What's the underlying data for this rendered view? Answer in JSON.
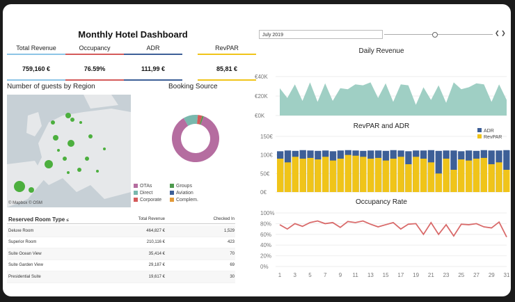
{
  "title": "Monthly Hotel Dashboard",
  "kpis": [
    {
      "label": "Total Revenue",
      "value": "759,160 €",
      "color": "#8cc4e6"
    },
    {
      "label": "Occupancy",
      "value": "76.59%",
      "color": "#d45a5a"
    },
    {
      "label": "ADR",
      "value": "111,99 €",
      "color": "#3d5f97"
    },
    {
      "label": "RevPAR",
      "value": "85,81 €",
      "color": "#f0c419"
    }
  ],
  "region": {
    "title": "Number of guests by Region",
    "credit": "© Mapbox © OSM"
  },
  "booking": {
    "title": "Booking Source",
    "legend": [
      {
        "label": "OTAs",
        "color": "#b56da0"
      },
      {
        "label": "Groups",
        "color": "#4e9a4e"
      },
      {
        "label": "Direct",
        "color": "#79b8ad"
      },
      {
        "label": "Aviation",
        "color": "#3d5f97"
      },
      {
        "label": "Corporate",
        "color": "#d45a5a"
      },
      {
        "label": "Complem.",
        "color": "#e39a38"
      }
    ],
    "slices": [
      86,
      10,
      3,
      1
    ]
  },
  "table": {
    "header": {
      "type": "Reserved Room Type",
      "revenue": "Total Revenue",
      "checked": "Checked In"
    },
    "rows": [
      {
        "type": "Deluxe Room",
        "revenue": "464,827 €",
        "checked": "1,529"
      },
      {
        "type": "Superior Room",
        "revenue": "210,116 €",
        "checked": "423"
      },
      {
        "type": "Suite Ocean View",
        "revenue": "35,414 €",
        "checked": "70"
      },
      {
        "type": "Suite Garden View",
        "revenue": "29,187 €",
        "checked": "69"
      },
      {
        "type": "Presidential Suite",
        "revenue": "19,617 €",
        "checked": "30"
      }
    ]
  },
  "filter": {
    "month": "July 2019"
  },
  "chart_data": [
    {
      "type": "area",
      "title": "Daily Revenue",
      "y_ticks": [
        "€40K",
        "€20K",
        "€0K"
      ],
      "ylim": [
        0,
        55000
      ],
      "x": [
        1,
        2,
        3,
        4,
        5,
        6,
        7,
        8,
        9,
        10,
        11,
        12,
        13,
        14,
        15,
        16,
        17,
        18,
        19,
        20,
        21,
        22,
        23,
        24,
        25,
        26,
        27,
        28,
        29,
        30,
        31
      ],
      "values": [
        28000,
        18000,
        32000,
        15000,
        34000,
        14000,
        33000,
        15000,
        28000,
        27000,
        32000,
        31000,
        34000,
        18000,
        33000,
        14000,
        32000,
        31000,
        11000,
        29000,
        16000,
        31000,
        13000,
        34000,
        27000,
        29000,
        33000,
        32000,
        14000,
        32000,
        16000
      ]
    },
    {
      "type": "bar",
      "title": "RevPAR and ADR",
      "y_ticks": [
        "150€",
        "100€",
        "50€",
        "0€"
      ],
      "ylim": [
        0,
        150
      ],
      "legend": [
        {
          "name": "ADR",
          "color": "#3d5f97"
        },
        {
          "name": "RevPAR",
          "color": "#f0c419"
        }
      ],
      "adr": [
        110,
        112,
        111,
        113,
        112,
        111,
        112,
        110,
        112,
        113,
        112,
        111,
        112,
        112,
        111,
        113,
        112,
        110,
        112,
        112,
        113,
        111,
        112,
        112,
        110,
        112,
        111,
        113,
        112,
        112,
        113
      ],
      "revpar": [
        90,
        80,
        95,
        90,
        92,
        88,
        95,
        85,
        90,
        100,
        98,
        95,
        90,
        92,
        85,
        90,
        95,
        75,
        95,
        90,
        80,
        50,
        90,
        60,
        88,
        85,
        90,
        92,
        75,
        80,
        60
      ]
    },
    {
      "type": "line",
      "title": "Occupancy Rate",
      "y_ticks": [
        "100%",
        "80%",
        "60%",
        "40%",
        "20%",
        "0%"
      ],
      "ylim": [
        0,
        100
      ],
      "x_ticks": [
        "1",
        "3",
        "5",
        "7",
        "9",
        "11",
        "13",
        "15",
        "17",
        "19",
        "21",
        "23",
        "25",
        "27",
        "29",
        "31"
      ],
      "values": [
        78,
        70,
        80,
        75,
        82,
        85,
        80,
        82,
        73,
        84,
        82,
        85,
        79,
        74,
        78,
        82,
        70,
        79,
        80,
        60,
        82,
        60,
        78,
        57,
        79,
        78,
        80,
        74,
        72,
        83,
        55
      ]
    }
  ]
}
